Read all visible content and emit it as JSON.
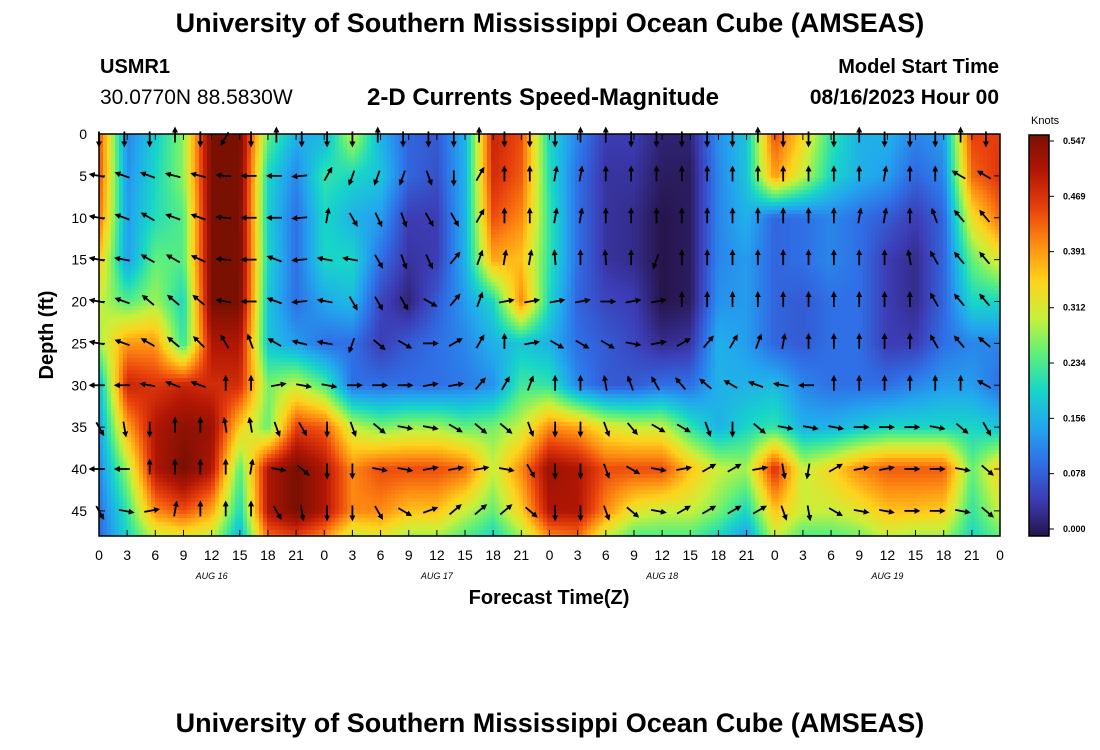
{
  "header": {
    "title": "University of Southern Mississippi Ocean Cube (AMSEAS)",
    "station_id": "USMR1",
    "station_coords": "30.0770N  88.5830W",
    "subtitle": "2-D Currents Speed-Magnitude",
    "start_label": "Model Start Time",
    "start_value": "08/16/2023 Hour 00"
  },
  "footer": {
    "title": "University of Southern Mississippi Ocean Cube (AMSEAS)"
  },
  "chart_data": {
    "type": "heatmap",
    "title": "2-D Currents Speed-Magnitude",
    "xlabel": "Forecast Time(Z)",
    "ylabel": "Depth (ft)",
    "x_range_hours": [
      0,
      96
    ],
    "y_range_ft": [
      0,
      48
    ],
    "x_ticks_hours": [
      0,
      3,
      6,
      9,
      12,
      15,
      18,
      21,
      24,
      27,
      30,
      33,
      36,
      39,
      42,
      45,
      48,
      51,
      54,
      57,
      60,
      63,
      66,
      69,
      72,
      75,
      78,
      81,
      84,
      87,
      90,
      93,
      96
    ],
    "x_tick_labels": [
      "0",
      "3",
      "6",
      "9",
      "12",
      "15",
      "18",
      "21",
      "0",
      "3",
      "6",
      "9",
      "12",
      "15",
      "18",
      "21",
      "0",
      "3",
      "6",
      "9",
      "12",
      "15",
      "18",
      "21",
      "0",
      "3",
      "6",
      "9",
      "12",
      "15",
      "18",
      "21",
      "0"
    ],
    "day_labels": [
      {
        "label": "AUG 16",
        "hour": 12
      },
      {
        "label": "AUG 17",
        "hour": 36
      },
      {
        "label": "AUG 18",
        "hour": 60
      },
      {
        "label": "AUG 19",
        "hour": 84
      }
    ],
    "y_ticks": [
      0,
      5,
      10,
      15,
      20,
      25,
      30,
      35,
      40,
      45
    ],
    "y_tick_labels": [
      "0",
      "5",
      "10",
      "15",
      "20",
      "25",
      "30",
      "35",
      "40",
      "45"
    ],
    "colorbar": {
      "title": "Knots",
      "min": 0.0,
      "max": 0.547,
      "ticks": [
        0.547,
        0.469,
        0.391,
        0.312,
        0.234,
        0.156,
        0.078,
        0.0
      ],
      "tick_labels": [
        "0.547",
        "0.469",
        "0.391",
        "0.312",
        "0.234",
        "0.156",
        "0.078",
        "0.000"
      ],
      "colormap": [
        "#26144a",
        "#3c3cb4",
        "#2f6fe6",
        "#22a7ee",
        "#17d6c8",
        "#5ef07a",
        "#c9f03a",
        "#ffd21c",
        "#ff8c12",
        "#e8400c",
        "#b21604",
        "#7a1002"
      ]
    },
    "time_hours": [
      0,
      3,
      6,
      9,
      12,
      15,
      18,
      21,
      24,
      27,
      30,
      33,
      36,
      39,
      42,
      45,
      48,
      51,
      54,
      57,
      60,
      63,
      66,
      69,
      72,
      75,
      78,
      81,
      84,
      87,
      90,
      93,
      96
    ],
    "depths_ft": [
      0,
      5,
      10,
      15,
      20,
      25,
      30,
      35,
      40,
      45,
      48
    ],
    "speed_knots": [
      [
        0.44,
        0.12,
        0.19,
        0.27,
        0.55,
        0.55,
        0.25,
        0.16,
        0.16,
        0.3,
        0.16,
        0.09,
        0.08,
        0.16,
        0.48,
        0.44,
        0.2,
        0.12,
        0.05,
        0.05,
        0.02,
        0.02,
        0.13,
        0.18,
        0.44,
        0.34,
        0.22,
        0.16,
        0.16,
        0.12,
        0.14,
        0.45,
        0.45
      ],
      [
        0.44,
        0.13,
        0.2,
        0.27,
        0.55,
        0.55,
        0.2,
        0.12,
        0.22,
        0.2,
        0.18,
        0.09,
        0.07,
        0.16,
        0.47,
        0.43,
        0.21,
        0.1,
        0.04,
        0.04,
        0.01,
        0.01,
        0.12,
        0.18,
        0.39,
        0.3,
        0.2,
        0.16,
        0.14,
        0.09,
        0.12,
        0.42,
        0.46
      ],
      [
        0.42,
        0.14,
        0.21,
        0.24,
        0.55,
        0.55,
        0.19,
        0.1,
        0.2,
        0.16,
        0.14,
        0.05,
        0.05,
        0.16,
        0.44,
        0.4,
        0.22,
        0.1,
        0.04,
        0.03,
        0.0,
        0.01,
        0.12,
        0.16,
        0.09,
        0.1,
        0.12,
        0.1,
        0.08,
        0.05,
        0.09,
        0.33,
        0.42
      ],
      [
        0.36,
        0.14,
        0.25,
        0.24,
        0.55,
        0.55,
        0.2,
        0.1,
        0.2,
        0.2,
        0.1,
        0.04,
        0.05,
        0.16,
        0.38,
        0.36,
        0.22,
        0.1,
        0.04,
        0.03,
        0.0,
        0.01,
        0.12,
        0.14,
        0.09,
        0.1,
        0.12,
        0.1,
        0.05,
        0.03,
        0.09,
        0.25,
        0.32
      ],
      [
        0.3,
        0.24,
        0.28,
        0.2,
        0.55,
        0.55,
        0.18,
        0.1,
        0.15,
        0.17,
        0.06,
        0.02,
        0.08,
        0.14,
        0.2,
        0.4,
        0.2,
        0.09,
        0.06,
        0.05,
        0.0,
        0.01,
        0.13,
        0.14,
        0.09,
        0.08,
        0.1,
        0.1,
        0.05,
        0.03,
        0.09,
        0.2,
        0.2
      ],
      [
        0.28,
        0.39,
        0.39,
        0.22,
        0.5,
        0.5,
        0.18,
        0.14,
        0.1,
        0.1,
        0.05,
        0.08,
        0.1,
        0.12,
        0.16,
        0.18,
        0.16,
        0.1,
        0.08,
        0.06,
        0.03,
        0.04,
        0.16,
        0.14,
        0.09,
        0.08,
        0.1,
        0.1,
        0.05,
        0.05,
        0.1,
        0.12,
        0.12
      ],
      [
        0.16,
        0.48,
        0.46,
        0.48,
        0.47,
        0.47,
        0.26,
        0.3,
        0.24,
        0.1,
        0.1,
        0.1,
        0.1,
        0.11,
        0.13,
        0.23,
        0.22,
        0.12,
        0.08,
        0.08,
        0.1,
        0.1,
        0.16,
        0.16,
        0.17,
        0.12,
        0.1,
        0.1,
        0.1,
        0.12,
        0.14,
        0.14,
        0.1
      ],
      [
        0.14,
        0.38,
        0.5,
        0.53,
        0.52,
        0.35,
        0.25,
        0.45,
        0.43,
        0.3,
        0.26,
        0.28,
        0.28,
        0.25,
        0.26,
        0.3,
        0.4,
        0.38,
        0.32,
        0.3,
        0.3,
        0.22,
        0.16,
        0.2,
        0.22,
        0.16,
        0.16,
        0.18,
        0.2,
        0.2,
        0.2,
        0.2,
        0.18
      ],
      [
        0.12,
        0.28,
        0.5,
        0.55,
        0.5,
        0.24,
        0.5,
        0.55,
        0.5,
        0.4,
        0.44,
        0.44,
        0.44,
        0.42,
        0.3,
        0.4,
        0.52,
        0.5,
        0.44,
        0.44,
        0.44,
        0.36,
        0.3,
        0.28,
        0.47,
        0.3,
        0.34,
        0.4,
        0.43,
        0.43,
        0.43,
        0.25,
        0.35
      ],
      [
        0.1,
        0.22,
        0.4,
        0.44,
        0.38,
        0.2,
        0.5,
        0.55,
        0.5,
        0.4,
        0.4,
        0.36,
        0.36,
        0.3,
        0.25,
        0.35,
        0.5,
        0.5,
        0.4,
        0.32,
        0.3,
        0.3,
        0.26,
        0.2,
        0.36,
        0.3,
        0.3,
        0.32,
        0.36,
        0.36,
        0.35,
        0.22,
        0.3
      ],
      [
        0.09,
        0.2,
        0.3,
        0.32,
        0.3,
        0.16,
        0.42,
        0.45,
        0.4,
        0.3,
        0.32,
        0.28,
        0.28,
        0.24,
        0.2,
        0.28,
        0.4,
        0.42,
        0.3,
        0.24,
        0.24,
        0.24,
        0.2,
        0.14,
        0.3,
        0.24,
        0.24,
        0.26,
        0.3,
        0.28,
        0.28,
        0.2,
        0.25
      ]
    ],
    "arrow_grid": {
      "hours": [
        0,
        2.7,
        5.4,
        8.1,
        10.8,
        13.5,
        16.2,
        18.9,
        21.6,
        24.3,
        27,
        29.7,
        32.4,
        35.1,
        37.8,
        40.5,
        43.2,
        45.9,
        48.6,
        51.3,
        54,
        56.7,
        59.4,
        62.1,
        64.8,
        67.5,
        70.2,
        72.9,
        75.6,
        78.3,
        81,
        83.7,
        86.4,
        89.1,
        91.8,
        94.5
      ],
      "depths_ft": [
        0,
        5,
        10,
        15,
        20,
        25,
        30,
        35,
        40,
        45
      ],
      "direction_deg": [
        [
          180,
          180,
          180,
          0,
          180,
          210,
          180,
          0,
          180,
          180,
          180,
          0,
          180,
          180,
          180,
          0,
          180,
          180,
          180,
          0,
          0,
          180,
          180,
          180,
          180,
          180,
          0,
          180,
          180,
          180,
          0,
          180,
          180,
          180,
          0,
          180
        ],
        [
          280,
          290,
          290,
          285,
          285,
          275,
          270,
          270,
          265,
          30,
          200,
          200,
          200,
          160,
          180,
          30,
          0,
          0,
          10,
          10,
          0,
          0,
          0,
          0,
          0,
          0,
          0,
          0,
          0,
          0,
          0,
          10,
          0,
          0,
          300,
          300
        ],
        [
          280,
          290,
          300,
          290,
          290,
          275,
          270,
          270,
          265,
          10,
          150,
          155,
          160,
          150,
          150,
          30,
          0,
          0,
          10,
          10,
          0,
          0,
          0,
          0,
          0,
          0,
          0,
          0,
          0,
          0,
          10,
          10,
          0,
          340,
          320,
          320
        ],
        [
          280,
          280,
          300,
          300,
          295,
          275,
          270,
          290,
          265,
          280,
          280,
          150,
          160,
          155,
          40,
          20,
          10,
          10,
          355,
          0,
          355,
          0,
          200,
          0,
          0,
          0,
          0,
          0,
          0,
          0,
          0,
          0,
          350,
          330,
          320,
          320
        ],
        [
          280,
          290,
          310,
          310,
          310,
          280,
          270,
          290,
          265,
          280,
          150,
          150,
          150,
          120,
          40,
          20,
          80,
          80,
          80,
          80,
          90,
          80,
          80,
          0,
          0,
          0,
          0,
          0,
          0,
          0,
          0,
          0,
          0,
          330,
          320,
          320
        ],
        [
          280,
          290,
          300,
          310,
          315,
          330,
          340,
          300,
          285,
          280,
          200,
          130,
          120,
          90,
          60,
          30,
          0,
          80,
          120,
          120,
          120,
          100,
          80,
          60,
          40,
          30,
          20,
          10,
          0,
          0,
          0,
          0,
          0,
          330,
          320,
          310
        ],
        [
          270,
          270,
          280,
          290,
          290,
          0,
          0,
          80,
          100,
          100,
          90,
          90,
          90,
          80,
          80,
          40,
          30,
          20,
          0,
          0,
          350,
          340,
          330,
          320,
          310,
          300,
          290,
          280,
          270,
          0,
          0,
          0,
          0,
          0,
          0,
          300
        ],
        [
          150,
          170,
          180,
          0,
          0,
          350,
          350,
          160,
          150,
          180,
          160,
          130,
          100,
          100,
          120,
          130,
          130,
          160,
          180,
          180,
          160,
          140,
          120,
          120,
          160,
          180,
          130,
          100,
          100,
          100,
          90,
          90,
          90,
          100,
          130,
          150
        ],
        [
          270,
          270,
          0,
          0,
          0,
          0,
          10,
          100,
          130,
          180,
          180,
          100,
          100,
          80,
          80,
          80,
          100,
          150,
          180,
          180,
          160,
          120,
          100,
          80,
          60,
          60,
          80,
          170,
          190,
          60,
          80,
          80,
          90,
          90,
          100,
          130
        ],
        [
          150,
          100,
          80,
          10,
          0,
          0,
          0,
          150,
          170,
          180,
          180,
          150,
          120,
          70,
          50,
          50,
          50,
          130,
          180,
          180,
          160,
          130,
          100,
          60,
          60,
          60,
          60,
          160,
          170,
          120,
          100,
          100,
          90,
          90,
          100,
          130
        ]
      ]
    }
  }
}
